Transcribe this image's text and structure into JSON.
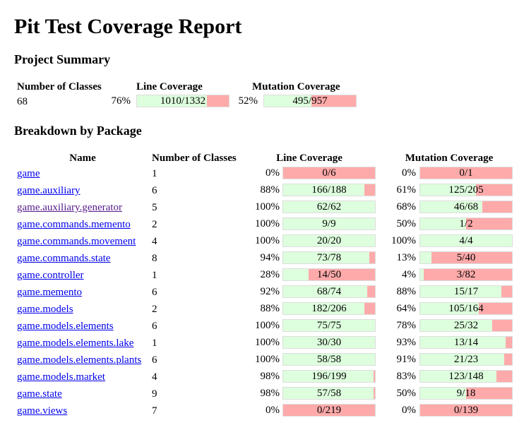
{
  "title": "Pit Test Coverage Report",
  "project_summary": {
    "heading": "Project Summary",
    "headers": {
      "classes": "Number of Classes",
      "line": "Line Coverage",
      "mutation": "Mutation Coverage"
    },
    "classes": "68",
    "line": {
      "percent": "76%",
      "covered": 1010,
      "total": 1332,
      "label": "1010/1332"
    },
    "mutation": {
      "percent": "52%",
      "covered": 495,
      "total": 957,
      "label": "495/957"
    }
  },
  "breakdown": {
    "heading": "Breakdown by Package",
    "headers": {
      "name": "Name",
      "classes": "Number of Classes",
      "line": "Line Coverage",
      "mutation": "Mutation Coverage"
    },
    "rows": [
      {
        "name": "game",
        "classes": "1",
        "line_pct": "0%",
        "line_label": "0/6",
        "line_cov": 0,
        "line_tot": 6,
        "mut_pct": "0%",
        "mut_label": "0/1",
        "mut_cov": 0,
        "mut_tot": 1
      },
      {
        "name": "game.auxiliary",
        "classes": "6",
        "line_pct": "88%",
        "line_label": "166/188",
        "line_cov": 166,
        "line_tot": 188,
        "mut_pct": "61%",
        "mut_label": "125/205",
        "mut_cov": 125,
        "mut_tot": 205
      },
      {
        "name": "game.auxiliary.generator",
        "classes": "5",
        "line_pct": "100%",
        "line_label": "62/62",
        "line_cov": 62,
        "line_tot": 62,
        "mut_pct": "68%",
        "mut_label": "46/68",
        "mut_cov": 46,
        "mut_tot": 68,
        "visited": true
      },
      {
        "name": "game.commands.memento",
        "classes": "2",
        "line_pct": "100%",
        "line_label": "9/9",
        "line_cov": 9,
        "line_tot": 9,
        "mut_pct": "50%",
        "mut_label": "1/2",
        "mut_cov": 1,
        "mut_tot": 2
      },
      {
        "name": "game.commands.movement",
        "classes": "4",
        "line_pct": "100%",
        "line_label": "20/20",
        "line_cov": 20,
        "line_tot": 20,
        "mut_pct": "100%",
        "mut_label": "4/4",
        "mut_cov": 4,
        "mut_tot": 4
      },
      {
        "name": "game.commands.state",
        "classes": "8",
        "line_pct": "94%",
        "line_label": "73/78",
        "line_cov": 73,
        "line_tot": 78,
        "mut_pct": "13%",
        "mut_label": "5/40",
        "mut_cov": 5,
        "mut_tot": 40
      },
      {
        "name": "game.controller",
        "classes": "1",
        "line_pct": "28%",
        "line_label": "14/50",
        "line_cov": 14,
        "line_tot": 50,
        "mut_pct": "4%",
        "mut_label": "3/82",
        "mut_cov": 3,
        "mut_tot": 82
      },
      {
        "name": "game.memento",
        "classes": "6",
        "line_pct": "92%",
        "line_label": "68/74",
        "line_cov": 68,
        "line_tot": 74,
        "mut_pct": "88%",
        "mut_label": "15/17",
        "mut_cov": 15,
        "mut_tot": 17
      },
      {
        "name": "game.models",
        "classes": "2",
        "line_pct": "88%",
        "line_label": "182/206",
        "line_cov": 182,
        "line_tot": 206,
        "mut_pct": "64%",
        "mut_label": "105/164",
        "mut_cov": 105,
        "mut_tot": 164
      },
      {
        "name": "game.models.elements",
        "classes": "6",
        "line_pct": "100%",
        "line_label": "75/75",
        "line_cov": 75,
        "line_tot": 75,
        "mut_pct": "78%",
        "mut_label": "25/32",
        "mut_cov": 25,
        "mut_tot": 32
      },
      {
        "name": "game.models.elements.lake",
        "classes": "1",
        "line_pct": "100%",
        "line_label": "30/30",
        "line_cov": 30,
        "line_tot": 30,
        "mut_pct": "93%",
        "mut_label": "13/14",
        "mut_cov": 13,
        "mut_tot": 14
      },
      {
        "name": "game.models.elements.plants",
        "classes": "6",
        "line_pct": "100%",
        "line_label": "58/58",
        "line_cov": 58,
        "line_tot": 58,
        "mut_pct": "91%",
        "mut_label": "21/23",
        "mut_cov": 21,
        "mut_tot": 23
      },
      {
        "name": "game.models.market",
        "classes": "4",
        "line_pct": "98%",
        "line_label": "196/199",
        "line_cov": 196,
        "line_tot": 199,
        "mut_pct": "83%",
        "mut_label": "123/148",
        "mut_cov": 123,
        "mut_tot": 148
      },
      {
        "name": "game.state",
        "classes": "9",
        "line_pct": "98%",
        "line_label": "57/58",
        "line_cov": 57,
        "line_tot": 58,
        "mut_pct": "50%",
        "mut_label": "9/18",
        "mut_cov": 9,
        "mut_tot": 18
      },
      {
        "name": "game.views",
        "classes": "7",
        "line_pct": "0%",
        "line_label": "0/219",
        "line_cov": 0,
        "line_tot": 219,
        "mut_pct": "0%",
        "mut_label": "0/139",
        "mut_cov": 0,
        "mut_tot": 139
      }
    ]
  },
  "colors": {
    "covered": "#ddffdd",
    "uncovered": "#ffaaaa",
    "link": "#0000ee",
    "visited_link": "#551a8b"
  }
}
